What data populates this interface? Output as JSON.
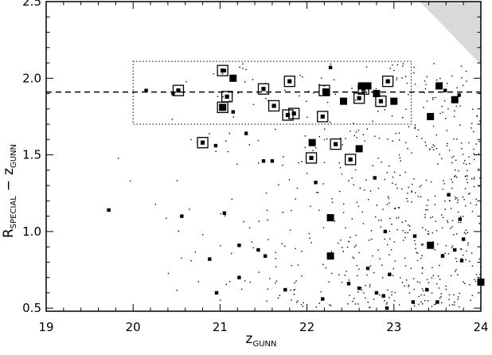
{
  "chart_data": {
    "type": "scatter",
    "xlabel": {
      "main": "z",
      "sub": "GUNN"
    },
    "ylabel": {
      "r": "R",
      "r_sub": "SPECIAL",
      "minus": "−",
      "z": "z",
      "z_sub": "GUNN"
    },
    "xlim": [
      19,
      24
    ],
    "ylim": [
      0.48,
      2.5
    ],
    "x_ticks": [
      19,
      20,
      21,
      22,
      23,
      24
    ],
    "x_tick_labels": [
      "19",
      "20",
      "21",
      "22",
      "23",
      "24"
    ],
    "y_ticks": [
      0.5,
      1.0,
      1.5,
      2.0,
      2.5
    ],
    "y_tick_labels": [
      "0.5",
      "1.0",
      "1.5",
      "2.0",
      "2.5"
    ],
    "grid": false,
    "reference_lines": [
      {
        "style": "dashed",
        "orientation": "horizontal",
        "y": 1.91
      }
    ],
    "selection_box": {
      "style": "dotted",
      "x_range": [
        20.0,
        23.2
      ],
      "y_range": [
        1.7,
        2.11
      ]
    },
    "shaded_region": {
      "color": "#d9d9d9",
      "vertices": [
        [
          23.3,
          2.5
        ],
        [
          24.0,
          2.5
        ],
        [
          24.0,
          2.09
        ]
      ]
    },
    "series": [
      {
        "marker": "large filled square",
        "points": [
          [
            21.15,
            2.0
          ],
          [
            22.63,
            1.95
          ],
          [
            23.52,
            1.95
          ],
          [
            22.8,
            1.9
          ],
          [
            22.22,
            1.91
          ],
          [
            22.42,
            1.85
          ],
          [
            23.0,
            1.85
          ],
          [
            23.7,
            1.86
          ],
          [
            23.42,
            1.75
          ],
          [
            22.06,
            1.58
          ],
          [
            22.27,
            1.09
          ],
          [
            22.27,
            0.84
          ],
          [
            23.42,
            0.91
          ],
          [
            24.0,
            0.67
          ],
          [
            22.7,
            1.95
          ],
          [
            21.03,
            1.81
          ],
          [
            22.6,
            1.54
          ]
        ]
      },
      {
        "marker": "small filled square",
        "points": [
          [
            21.05,
            2.05
          ],
          [
            22.27,
            2.07
          ],
          [
            21.15,
            1.78
          ],
          [
            20.95,
            1.56
          ],
          [
            20.46,
            1.9
          ],
          [
            20.15,
            1.92
          ],
          [
            21.3,
            1.64
          ],
          [
            21.5,
            1.46
          ],
          [
            21.6,
            1.46
          ],
          [
            22.78,
            1.35
          ],
          [
            19.72,
            1.14
          ],
          [
            20.56,
            1.1
          ],
          [
            21.22,
            0.91
          ],
          [
            21.44,
            0.88
          ],
          [
            21.52,
            0.84
          ],
          [
            22.1,
            1.32
          ],
          [
            22.9,
            1.0
          ],
          [
            23.24,
            0.97
          ],
          [
            23.63,
            1.24
          ],
          [
            23.76,
            1.08
          ],
          [
            23.8,
            0.95
          ],
          [
            23.56,
            0.84
          ],
          [
            22.95,
            0.72
          ],
          [
            22.7,
            0.76
          ],
          [
            22.48,
            0.66
          ],
          [
            22.18,
            0.56
          ],
          [
            21.75,
            0.62
          ],
          [
            21.22,
            0.7
          ],
          [
            20.96,
            0.6
          ],
          [
            22.88,
            0.58
          ],
          [
            22.92,
            0.5
          ],
          [
            23.38,
            0.62
          ],
          [
            23.22,
            0.54
          ],
          [
            23.7,
            0.88
          ],
          [
            22.6,
            0.63
          ],
          [
            23.78,
            0.81
          ],
          [
            21.05,
            1.12
          ],
          [
            20.88,
            0.82
          ],
          [
            23.59,
            1.92
          ],
          [
            23.75,
            1.89
          ],
          [
            23.5,
            0.54
          ],
          [
            22.8,
            0.6
          ]
        ]
      },
      {
        "marker": "open square",
        "points": [
          [
            20.52,
            1.92
          ],
          [
            21.03,
            2.05
          ],
          [
            21.08,
            1.88
          ],
          [
            21.03,
            1.81
          ],
          [
            21.5,
            1.93
          ],
          [
            21.62,
            1.82
          ],
          [
            21.8,
            1.98
          ],
          [
            21.78,
            1.76
          ],
          [
            21.85,
            1.77
          ],
          [
            22.2,
            1.92
          ],
          [
            22.18,
            1.75
          ],
          [
            22.6,
            1.87
          ],
          [
            22.65,
            1.93
          ],
          [
            22.93,
            1.98
          ],
          [
            22.85,
            1.85
          ],
          [
            20.8,
            1.58
          ],
          [
            22.05,
            1.48
          ],
          [
            22.33,
            1.57
          ],
          [
            22.5,
            1.47
          ]
        ]
      }
    ]
  }
}
